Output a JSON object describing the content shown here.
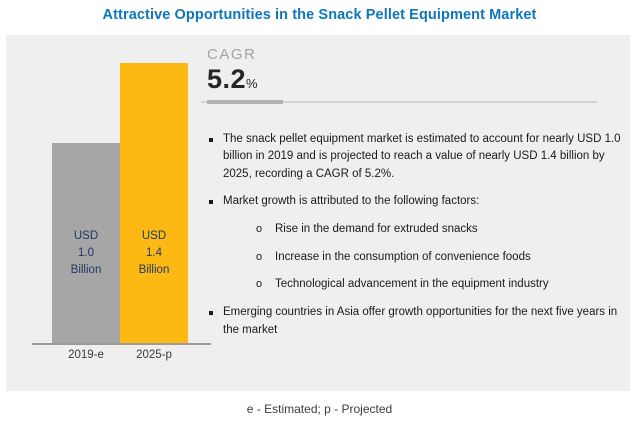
{
  "title": "Attractive Opportunities in the Snack Pellet Equipment Market",
  "colors": {
    "title_blue": "#0E76BC",
    "panel_bg": "#EFEFEF",
    "bar_gray": "#A6A6A6",
    "bar_yellow": "#FDB913",
    "bar_label_text": "#1F3864",
    "axis_line": "#9B9B9B"
  },
  "cagr": {
    "label": "CAGR",
    "value": "5.2",
    "unit": "%"
  },
  "chart_data": {
    "type": "bar",
    "title": "Attractive Opportunities in the Snack Pellet Equipment Market",
    "categories": [
      "2019-e",
      "2025-p"
    ],
    "values": [
      1.0,
      1.4
    ],
    "unit": "USD Billion",
    "bar_colors": [
      "#A6A6A6",
      "#FDB913"
    ],
    "data_labels": [
      "USD 1.0 Billion",
      "USD 1.4 Billion"
    ],
    "cagr_percent": 5.2,
    "legend": "none",
    "grid": false,
    "footnote": "e - Estimated; p - Projected"
  },
  "bars": [
    {
      "tick": "2019-e",
      "lines": [
        "USD",
        "1.0",
        "Billion"
      ]
    },
    {
      "tick": "2025-p",
      "lines": [
        "USD",
        "1.4",
        "Billion"
      ]
    }
  ],
  "bullets": [
    {
      "text": "The snack pellet equipment market is estimated to account for nearly USD 1.0 billion in 2019 and is projected to reach a value of nearly USD 1.4 billion by 2025, recording a CAGR of 5.2%."
    },
    {
      "text": "Market growth is attributed to the following factors:"
    },
    {
      "text": "Emerging countries in Asia offer growth opportunities for the next five years in the market"
    }
  ],
  "sub_bullets": [
    {
      "marker": "o",
      "text": "Rise in the demand for extruded snacks"
    },
    {
      "marker": "o",
      "text": "Increase in the consumption of convenience foods"
    },
    {
      "marker": "o",
      "text": "Technological advancement in the equipment industry"
    }
  ],
  "footer": "e - Estimated; p - Projected"
}
